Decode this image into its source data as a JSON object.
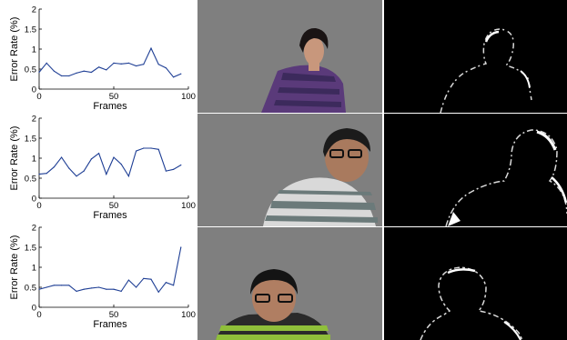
{
  "chart_data": [
    {
      "type": "line",
      "ylabel": "Error Rate (%)",
      "xlabel": "Frames",
      "xlim": [
        0,
        100
      ],
      "ylim": [
        0,
        2
      ],
      "x_ticks": [
        "0",
        "50",
        "100"
      ],
      "y_ticks": [
        "0",
        "0.5",
        "1",
        "1.5",
        "2"
      ],
      "grid": false,
      "color": "#1f3f95",
      "x": [
        0,
        5,
        10,
        15,
        20,
        25,
        30,
        35,
        40,
        45,
        50,
        55,
        60,
        65,
        70,
        75,
        80,
        85,
        90,
        95
      ],
      "values": [
        0.42,
        0.65,
        0.45,
        0.33,
        0.33,
        0.4,
        0.45,
        0.42,
        0.55,
        0.48,
        0.65,
        0.63,
        0.65,
        0.58,
        0.62,
        1.02,
        0.62,
        0.53,
        0.3,
        0.38
      ]
    },
    {
      "type": "line",
      "ylabel": "Error Rate (%)",
      "xlabel": "Frames",
      "xlim": [
        0,
        100
      ],
      "ylim": [
        0,
        2
      ],
      "x_ticks": [
        "0",
        "50",
        "100"
      ],
      "y_ticks": [
        "0",
        "0.5",
        "1",
        "1.5",
        "2"
      ],
      "grid": false,
      "color": "#1f3f95",
      "x": [
        0,
        5,
        10,
        15,
        20,
        25,
        30,
        35,
        40,
        45,
        50,
        55,
        60,
        65,
        70,
        75,
        80,
        85,
        90,
        95
      ],
      "values": [
        0.6,
        0.62,
        0.78,
        1.02,
        0.75,
        0.55,
        0.68,
        0.98,
        1.12,
        0.6,
        1.02,
        0.85,
        0.55,
        1.18,
        1.25,
        1.25,
        1.22,
        0.68,
        0.72,
        0.83
      ]
    },
    {
      "type": "line",
      "ylabel": "Error Rate (%)",
      "xlabel": "Frames",
      "xlim": [
        0,
        100
      ],
      "ylim": [
        0,
        2
      ],
      "x_ticks": [
        "0",
        "50",
        "100"
      ],
      "y_ticks": [
        "0",
        "0.5",
        "1",
        "1.5",
        "2"
      ],
      "grid": false,
      "color": "#1f3f95",
      "x": [
        0,
        5,
        10,
        15,
        20,
        25,
        30,
        35,
        40,
        45,
        50,
        55,
        60,
        65,
        70,
        75,
        80,
        85,
        90,
        95
      ],
      "values": [
        0.45,
        0.5,
        0.55,
        0.55,
        0.55,
        0.4,
        0.45,
        0.48,
        0.5,
        0.45,
        0.45,
        0.4,
        0.68,
        0.5,
        0.72,
        0.7,
        0.38,
        0.62,
        0.55,
        1.5
      ]
    }
  ],
  "photos": [
    "woman-in-purple-top",
    "man-in-striped-shirt-with-glasses",
    "man-in-green-striped-shirt"
  ],
  "masks": [
    "silhouette-edge-error-map",
    "silhouette-edge-error-map",
    "silhouette-edge-error-map"
  ]
}
